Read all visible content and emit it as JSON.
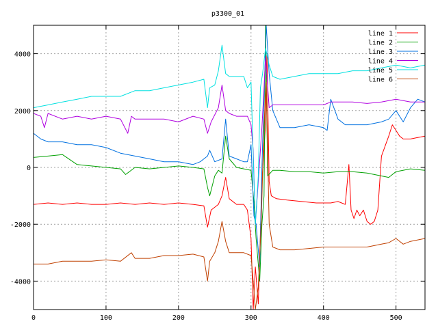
{
  "chart_data": {
    "type": "line",
    "title": "p3300_01",
    "xlabel": "",
    "ylabel": "",
    "xlim": [
      0,
      540
    ],
    "ylim": [
      -5000,
      5000
    ],
    "x_ticks": [
      0,
      100,
      200,
      300,
      400,
      500
    ],
    "y_ticks": [
      -4000,
      -2000,
      0,
      2000,
      4000
    ],
    "grid": true,
    "legend_position": "top-right",
    "series": [
      {
        "name": "line 1",
        "color": "#ff0000",
        "x": [
          0,
          20,
          40,
          60,
          80,
          100,
          120,
          140,
          160,
          180,
          200,
          220,
          235,
          240,
          245,
          255,
          260,
          265,
          270,
          280,
          290,
          295,
          300,
          303,
          306,
          310,
          315,
          320,
          322,
          325,
          328,
          335,
          350,
          370,
          390,
          410,
          420,
          430,
          435,
          438,
          442,
          446,
          450,
          455,
          460,
          465,
          470,
          475,
          480,
          490,
          495,
          500,
          505,
          510,
          520,
          530,
          540
        ],
        "y": [
          -1300,
          -1250,
          -1300,
          -1250,
          -1300,
          -1300,
          -1250,
          -1300,
          -1250,
          -1300,
          -1250,
          -1300,
          -1350,
          -2100,
          -1500,
          -1300,
          -1000,
          -350,
          -1100,
          -1300,
          -1300,
          -1500,
          -2500,
          -5000,
          -3500,
          -4800,
          -500,
          1500,
          4000,
          -500,
          -1000,
          -1100,
          -1150,
          -1200,
          -1250,
          -1250,
          -1200,
          -1300,
          100,
          -1500,
          -1800,
          -1500,
          -1700,
          -1500,
          -1900,
          -2000,
          -1900,
          -1500,
          400,
          1100,
          1500,
          1300,
          1100,
          1000,
          1000,
          1050,
          1100
        ]
      },
      {
        "name": "line 2",
        "color": "#00a000",
        "x": [
          0,
          20,
          40,
          60,
          80,
          100,
          120,
          127,
          140,
          160,
          180,
          200,
          220,
          235,
          240,
          243,
          250,
          255,
          260,
          265,
          270,
          280,
          290,
          300,
          304,
          307,
          312,
          315,
          318,
          320,
          323,
          330,
          340,
          360,
          380,
          400,
          420,
          440,
          460,
          470,
          480,
          490,
          500,
          520,
          540
        ],
        "y": [
          350,
          400,
          450,
          100,
          50,
          0,
          -50,
          -250,
          0,
          -50,
          0,
          50,
          0,
          -50,
          -700,
          -1000,
          -300,
          -100,
          -200,
          1100,
          300,
          0,
          -50,
          -100,
          -1200,
          -2500,
          -4000,
          -2000,
          -1000,
          5000,
          -300,
          -100,
          -100,
          -150,
          -150,
          -200,
          -150,
          -150,
          -200,
          -250,
          -300,
          -350,
          -150,
          -50,
          -100
        ]
      },
      {
        "name": "line 3",
        "color": "#0070e0",
        "x": [
          0,
          10,
          20,
          40,
          60,
          80,
          100,
          120,
          140,
          160,
          180,
          200,
          220,
          230,
          240,
          243,
          250,
          260,
          265,
          270,
          280,
          290,
          295,
          300,
          304,
          307,
          312,
          315,
          318,
          321,
          325,
          330,
          340,
          360,
          380,
          400,
          405,
          410,
          420,
          430,
          440,
          460,
          480,
          490,
          500,
          510,
          520,
          530,
          540
        ],
        "y": [
          1200,
          1000,
          900,
          900,
          800,
          800,
          700,
          500,
          400,
          300,
          200,
          200,
          100,
          200,
          400,
          600,
          200,
          300,
          1700,
          400,
          300,
          200,
          200,
          800,
          -1700,
          -2000,
          -3500,
          0,
          2500,
          5000,
          3300,
          2000,
          1400,
          1400,
          1500,
          1400,
          1300,
          2400,
          1700,
          1500,
          1500,
          1500,
          1600,
          1700,
          2000,
          1600,
          2100,
          2400,
          2300
        ]
      },
      {
        "name": "line 4",
        "color": "#b000e0",
        "x": [
          0,
          10,
          15,
          20,
          40,
          60,
          80,
          100,
          120,
          130,
          135,
          140,
          160,
          180,
          200,
          220,
          235,
          240,
          245,
          255,
          260,
          265,
          270,
          280,
          290,
          295,
          300,
          303,
          306,
          310,
          315,
          318,
          320,
          325,
          330,
          340,
          360,
          380,
          400,
          410,
          420,
          440,
          460,
          480,
          500,
          520,
          540
        ],
        "y": [
          1900,
          1800,
          1400,
          1900,
          1700,
          1800,
          1700,
          1800,
          1700,
          1200,
          1800,
          1700,
          1700,
          1700,
          1600,
          1800,
          1700,
          1200,
          1600,
          2100,
          2900,
          2000,
          1900,
          1800,
          1800,
          1800,
          1500,
          600,
          -2000,
          -500,
          1400,
          2800,
          3900,
          2100,
          2200,
          2200,
          2200,
          2200,
          2200,
          2300,
          2300,
          2300,
          2250,
          2300,
          2400,
          2300,
          2300
        ]
      },
      {
        "name": "line 5",
        "color": "#00e0e0",
        "x": [
          0,
          20,
          40,
          60,
          80,
          100,
          120,
          140,
          160,
          180,
          200,
          220,
          235,
          240,
          243,
          250,
          255,
          260,
          265,
          270,
          280,
          290,
          295,
          300,
          303,
          306,
          310,
          313,
          316,
          320,
          325,
          330,
          340,
          360,
          380,
          400,
          420,
          440,
          460,
          480,
          500,
          520,
          540
        ],
        "y": [
          2100,
          2200,
          2300,
          2400,
          2500,
          2500,
          2500,
          2700,
          2700,
          2800,
          2900,
          3000,
          3100,
          2100,
          2800,
          2900,
          3400,
          4300,
          3300,
          3200,
          3200,
          3200,
          2800,
          3000,
          400,
          -2000,
          -300,
          2800,
          3300,
          4200,
          3600,
          3200,
          3100,
          3200,
          3300,
          3300,
          3300,
          3400,
          3400,
          3500,
          3600,
          3500,
          3600
        ]
      },
      {
        "name": "line 6",
        "color": "#c04000",
        "x": [
          0,
          20,
          40,
          60,
          80,
          100,
          120,
          135,
          140,
          160,
          180,
          200,
          220,
          235,
          240,
          243,
          250,
          255,
          260,
          265,
          270,
          280,
          290,
          300,
          303,
          306,
          310,
          314,
          318,
          321,
          325,
          330,
          340,
          360,
          380,
          400,
          420,
          440,
          460,
          480,
          490,
          500,
          510,
          520,
          540
        ],
        "y": [
          -3400,
          -3400,
          -3300,
          -3300,
          -3300,
          -3250,
          -3300,
          -3000,
          -3200,
          -3200,
          -3100,
          -3100,
          -3050,
          -3150,
          -4000,
          -3300,
          -3000,
          -2600,
          -1900,
          -2600,
          -3000,
          -3000,
          -3000,
          -3100,
          -4000,
          -5000,
          -4200,
          -2000,
          1500,
          3000,
          -2000,
          -2800,
          -2900,
          -2900,
          -2850,
          -2800,
          -2800,
          -2800,
          -2800,
          -2700,
          -2650,
          -2500,
          -2700,
          -2600,
          -2500
        ]
      }
    ]
  }
}
